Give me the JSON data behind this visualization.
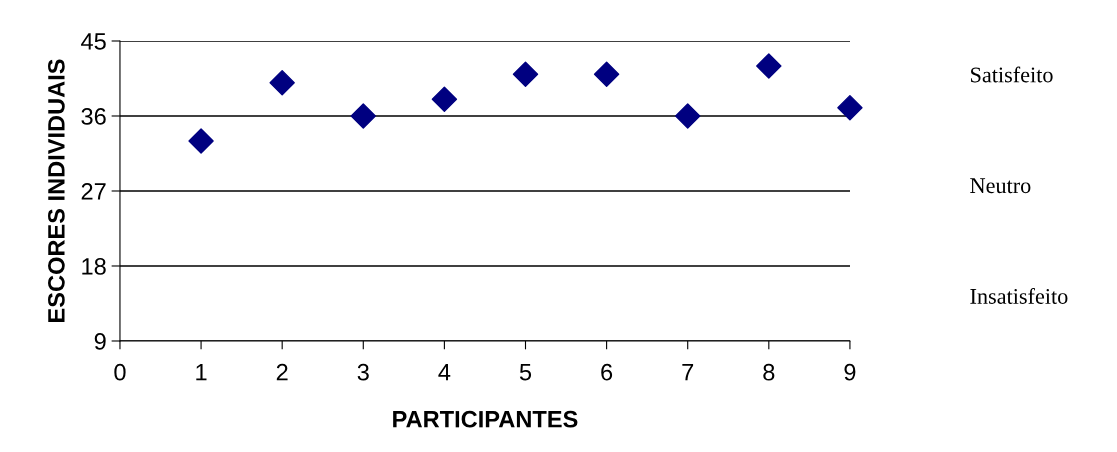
{
  "chart_data": {
    "type": "scatter",
    "xlabel": "PARTICIPANTES",
    "ylabel": "ESCORES INDIVIDUAIS",
    "x": [
      1,
      2,
      3,
      4,
      5,
      6,
      7,
      8,
      9
    ],
    "series": [
      {
        "color": "#000080",
        "values": [
          33,
          40,
          36,
          38,
          41,
          41,
          36,
          42,
          37
        ]
      }
    ],
    "xlim": [
      0,
      9
    ],
    "xticks": [
      0,
      1,
      2,
      3,
      4,
      5,
      6,
      7,
      8,
      9
    ],
    "ylim": [
      9,
      45
    ],
    "yticks": [
      9,
      18,
      27,
      36,
      45
    ],
    "grid": "y",
    "marker": "diamond",
    "legend": false,
    "annotations": [
      "Satisfeito",
      "Neutro",
      "Insatisfeito"
    ]
  }
}
